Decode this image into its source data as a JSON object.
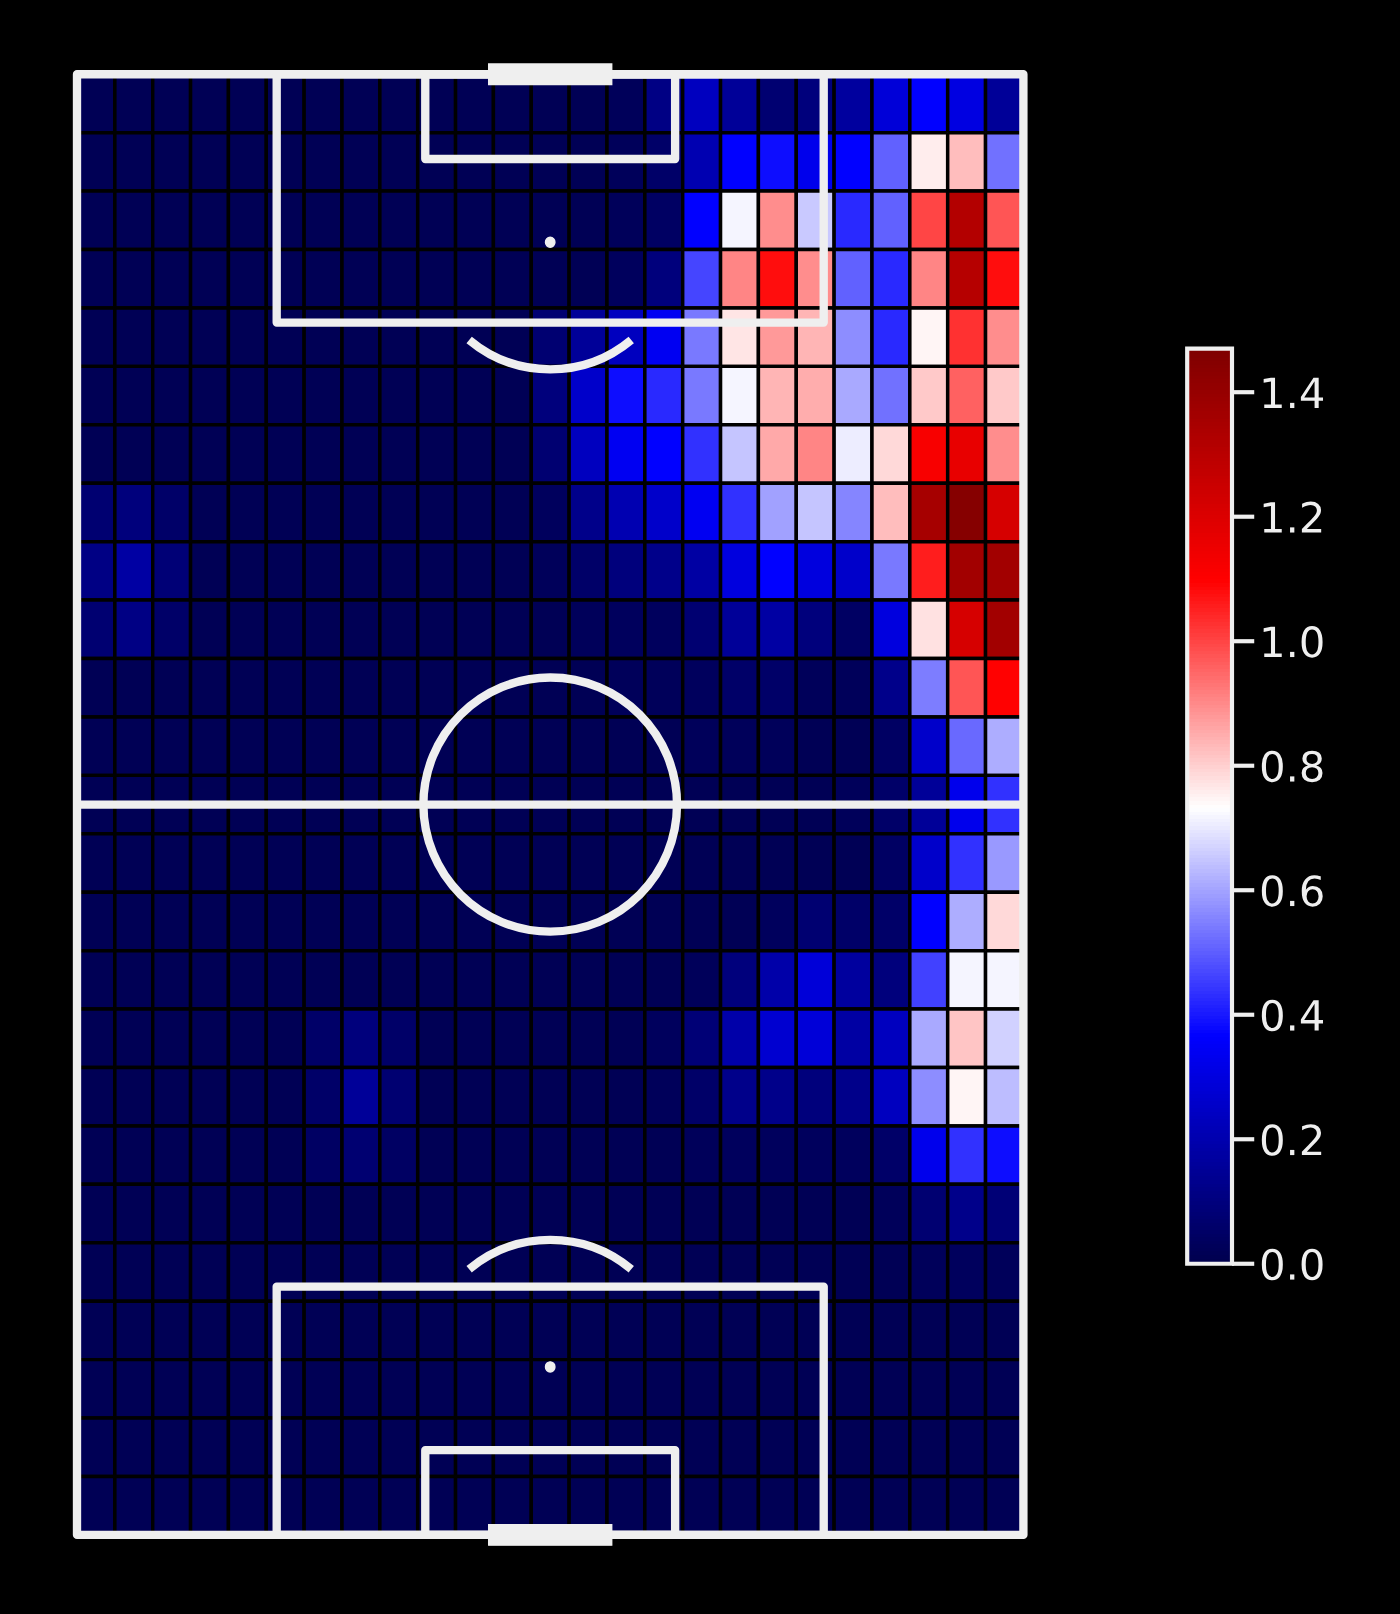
{
  "chart_data": {
    "type": "heatmap",
    "categories": [
      null,
      null,
      null,
      null,
      null,
      null,
      null,
      null,
      null,
      null,
      null,
      null,
      null,
      null,
      null,
      null,
      null,
      null,
      null,
      null,
      null,
      null,
      null,
      null,
      null
    ],
    "y_categories": [
      null,
      null,
      null,
      null,
      null,
      null,
      null,
      null,
      null,
      null,
      null,
      null,
      null,
      null,
      null,
      null,
      null,
      null,
      null,
      null,
      null,
      null,
      null,
      null,
      null
    ],
    "cells": [
      [
        0.02,
        0.02,
        0.02,
        0.02,
        0.02,
        0.02,
        0.02,
        0.02,
        0.02,
        0.02,
        0.02,
        0.02,
        0.02,
        0.02,
        0.03,
        0.12,
        0.24,
        0.16,
        0.08,
        0.1,
        0.17,
        0.29,
        0.37,
        0.31,
        0.16
      ],
      [
        0.02,
        0.02,
        0.02,
        0.02,
        0.02,
        0.02,
        0.02,
        0.02,
        0.02,
        0.02,
        0.02,
        0.02,
        0.02,
        0.02,
        0.03,
        0.06,
        0.21,
        0.37,
        0.39,
        0.33,
        0.37,
        0.51,
        0.76,
        0.83,
        0.53
      ],
      [
        0.02,
        0.02,
        0.02,
        0.02,
        0.02,
        0.02,
        0.02,
        0.02,
        0.02,
        0.02,
        0.02,
        0.02,
        0.02,
        0.02,
        0.03,
        0.05,
        0.37,
        0.72,
        0.9,
        0.66,
        0.43,
        0.51,
        1.0,
        1.32,
        0.98
      ],
      [
        0.02,
        0.02,
        0.02,
        0.02,
        0.02,
        0.02,
        0.02,
        0.02,
        0.02,
        0.02,
        0.02,
        0.02,
        0.02,
        0.02,
        0.04,
        0.1,
        0.47,
        0.91,
        1.08,
        0.9,
        0.51,
        0.43,
        0.91,
        1.31,
        1.08
      ],
      [
        0.02,
        0.02,
        0.02,
        0.02,
        0.02,
        0.02,
        0.02,
        0.02,
        0.02,
        0.02,
        0.02,
        0.02,
        0.08,
        0.16,
        0.24,
        0.34,
        0.54,
        0.77,
        0.88,
        0.84,
        0.57,
        0.43,
        0.75,
        1.03,
        0.9
      ],
      [
        0.02,
        0.02,
        0.02,
        0.02,
        0.02,
        0.02,
        0.02,
        0.02,
        0.02,
        0.02,
        0.02,
        0.02,
        0.1,
        0.26,
        0.39,
        0.43,
        0.54,
        0.72,
        0.84,
        0.85,
        0.61,
        0.53,
        0.81,
        0.96,
        0.81
      ],
      [
        0.02,
        0.02,
        0.02,
        0.02,
        0.02,
        0.02,
        0.02,
        0.02,
        0.02,
        0.02,
        0.02,
        0.02,
        0.08,
        0.24,
        0.34,
        0.37,
        0.44,
        0.65,
        0.86,
        0.91,
        0.71,
        0.79,
        1.12,
        1.17,
        0.9
      ],
      [
        0.08,
        0.1,
        0.06,
        0.02,
        0.02,
        0.02,
        0.02,
        0.02,
        0.02,
        0.02,
        0.02,
        0.02,
        0.04,
        0.13,
        0.21,
        0.26,
        0.34,
        0.44,
        0.6,
        0.65,
        0.56,
        0.83,
        1.36,
        1.45,
        1.22
      ],
      [
        0.12,
        0.18,
        0.09,
        0.02,
        0.02,
        0.02,
        0.02,
        0.02,
        0.02,
        0.02,
        0.02,
        0.02,
        0.03,
        0.06,
        0.1,
        0.13,
        0.18,
        0.3,
        0.37,
        0.3,
        0.26,
        0.54,
        1.06,
        1.37,
        1.37
      ],
      [
        0.08,
        0.12,
        0.06,
        0.02,
        0.02,
        0.02,
        0.02,
        0.02,
        0.02,
        0.02,
        0.02,
        0.02,
        0.02,
        0.03,
        0.04,
        0.04,
        0.08,
        0.16,
        0.18,
        0.1,
        0.05,
        0.3,
        0.78,
        1.22,
        1.37
      ],
      [
        0.02,
        0.02,
        0.02,
        0.02,
        0.02,
        0.02,
        0.02,
        0.02,
        0.02,
        0.02,
        0.02,
        0.02,
        0.02,
        0.02,
        0.03,
        0.03,
        0.04,
        0.06,
        0.06,
        0.03,
        0.03,
        0.13,
        0.55,
        0.98,
        1.1
      ],
      [
        0.02,
        0.02,
        0.02,
        0.02,
        0.02,
        0.02,
        0.02,
        0.02,
        0.02,
        0.02,
        0.02,
        0.02,
        0.02,
        0.02,
        0.02,
        0.02,
        0.03,
        0.03,
        0.03,
        0.02,
        0.02,
        0.05,
        0.26,
        0.52,
        0.62
      ],
      [
        0.02,
        0.02,
        0.02,
        0.02,
        0.02,
        0.02,
        0.02,
        0.02,
        0.02,
        0.02,
        0.02,
        0.02,
        0.02,
        0.02,
        0.02,
        0.02,
        0.02,
        0.02,
        0.02,
        0.02,
        0.03,
        0.06,
        0.16,
        0.33,
        0.44
      ],
      [
        0.02,
        0.02,
        0.02,
        0.02,
        0.02,
        0.02,
        0.02,
        0.02,
        0.02,
        0.02,
        0.02,
        0.02,
        0.02,
        0.02,
        0.02,
        0.02,
        0.02,
        0.02,
        0.02,
        0.02,
        0.02,
        0.05,
        0.26,
        0.44,
        0.59
      ],
      [
        0.02,
        0.02,
        0.02,
        0.02,
        0.02,
        0.02,
        0.02,
        0.02,
        0.02,
        0.02,
        0.02,
        0.02,
        0.02,
        0.02,
        0.02,
        0.02,
        0.02,
        0.02,
        0.04,
        0.08,
        0.06,
        0.06,
        0.37,
        0.62,
        0.79
      ],
      [
        0.02,
        0.02,
        0.02,
        0.02,
        0.02,
        0.02,
        0.02,
        0.02,
        0.02,
        0.02,
        0.02,
        0.02,
        0.02,
        0.02,
        0.02,
        0.02,
        0.03,
        0.1,
        0.19,
        0.29,
        0.17,
        0.1,
        0.46,
        0.72,
        0.72
      ],
      [
        0.02,
        0.02,
        0.02,
        0.02,
        0.02,
        0.02,
        0.06,
        0.1,
        0.06,
        0.02,
        0.02,
        0.02,
        0.02,
        0.02,
        0.02,
        0.04,
        0.09,
        0.19,
        0.27,
        0.29,
        0.18,
        0.24,
        0.61,
        0.82,
        0.67
      ],
      [
        0.02,
        0.02,
        0.02,
        0.02,
        0.02,
        0.02,
        0.06,
        0.16,
        0.08,
        0.02,
        0.02,
        0.02,
        0.02,
        0.02,
        0.02,
        0.03,
        0.06,
        0.13,
        0.13,
        0.1,
        0.13,
        0.24,
        0.57,
        0.75,
        0.64
      ],
      [
        0.02,
        0.02,
        0.02,
        0.02,
        0.02,
        0.02,
        0.05,
        0.08,
        0.05,
        0.02,
        0.02,
        0.02,
        0.02,
        0.02,
        0.02,
        0.02,
        0.03,
        0.04,
        0.04,
        0.04,
        0.04,
        0.06,
        0.33,
        0.44,
        0.39
      ],
      [
        0.02,
        0.02,
        0.02,
        0.02,
        0.02,
        0.02,
        0.02,
        0.02,
        0.02,
        0.02,
        0.02,
        0.02,
        0.02,
        0.02,
        0.02,
        0.02,
        0.02,
        0.02,
        0.02,
        0.02,
        0.02,
        0.03,
        0.08,
        0.13,
        0.09
      ],
      [
        0.02,
        0.02,
        0.02,
        0.02,
        0.02,
        0.02,
        0.02,
        0.02,
        0.02,
        0.02,
        0.02,
        0.02,
        0.02,
        0.02,
        0.02,
        0.02,
        0.02,
        0.02,
        0.02,
        0.02,
        0.02,
        0.02,
        0.03,
        0.04,
        0.03
      ],
      [
        0.02,
        0.02,
        0.02,
        0.02,
        0.02,
        0.02,
        0.02,
        0.02,
        0.02,
        0.02,
        0.02,
        0.02,
        0.02,
        0.02,
        0.02,
        0.02,
        0.02,
        0.02,
        0.02,
        0.02,
        0.02,
        0.02,
        0.02,
        0.02,
        0.02
      ],
      [
        0.02,
        0.02,
        0.02,
        0.02,
        0.02,
        0.02,
        0.02,
        0.02,
        0.02,
        0.02,
        0.02,
        0.02,
        0.02,
        0.02,
        0.02,
        0.02,
        0.02,
        0.02,
        0.02,
        0.02,
        0.02,
        0.02,
        0.02,
        0.02,
        0.02
      ],
      [
        0.02,
        0.02,
        0.02,
        0.02,
        0.02,
        0.02,
        0.02,
        0.02,
        0.02,
        0.02,
        0.02,
        0.02,
        0.02,
        0.02,
        0.02,
        0.02,
        0.02,
        0.02,
        0.02,
        0.02,
        0.02,
        0.02,
        0.02,
        0.02,
        0.02
      ],
      [
        0.02,
        0.02,
        0.02,
        0.02,
        0.02,
        0.02,
        0.02,
        0.02,
        0.02,
        0.02,
        0.02,
        0.02,
        0.02,
        0.02,
        0.02,
        0.02,
        0.02,
        0.02,
        0.02,
        0.02,
        0.02,
        0.02,
        0.02,
        0.02,
        0.02
      ]
    ],
    "clim": [
      0,
      1.47
    ],
    "cticks": [
      {
        "value": 0,
        "label": "0.0"
      },
      {
        "value": 0.2,
        "label": "0.2"
      },
      {
        "value": 0.4,
        "label": "0.4"
      },
      {
        "value": 0.6,
        "label": "0.6"
      },
      {
        "value": 0.8,
        "label": "0.8"
      },
      {
        "value": 1.0,
        "label": "1.0"
      },
      {
        "value": 1.2,
        "label": "1.2"
      },
      {
        "value": 1.4,
        "label": "1.4"
      }
    ]
  }
}
